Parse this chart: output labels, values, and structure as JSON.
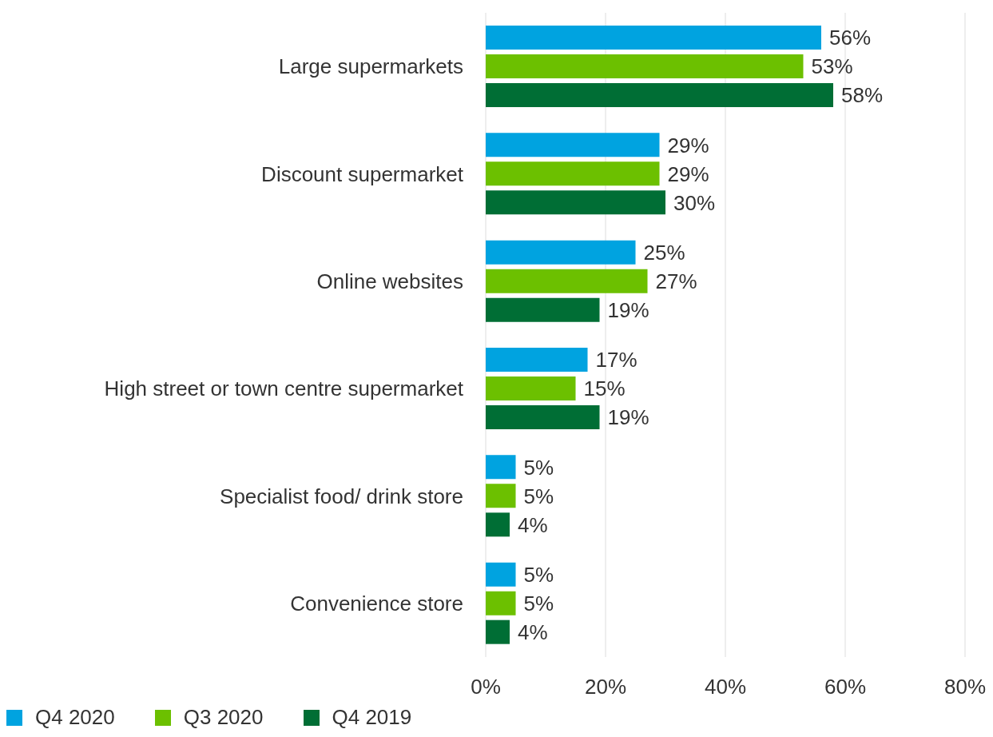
{
  "chart_data": {
    "type": "bar",
    "orientation": "horizontal",
    "categories": [
      "Large supermarkets",
      "Discount supermarket",
      "Online websites",
      "High street or town centre supermarket",
      "Specialist food/ drink store",
      "Convenience store"
    ],
    "series": [
      {
        "name": "Q4 2020",
        "color": "#00a3e0",
        "values": [
          56,
          29,
          25,
          17,
          5,
          5
        ],
        "value_labels": [
          "56%",
          "29%",
          "25%",
          "17%",
          "5%",
          "5%"
        ]
      },
      {
        "name": "Q3 2020",
        "color": "#6cc000",
        "values": [
          53,
          29,
          27,
          15,
          5,
          5
        ],
        "value_labels": [
          "53%",
          "29%",
          "27%",
          "15%",
          "5%",
          "5%"
        ]
      },
      {
        "name": "Q4 2019",
        "color": "#006e35",
        "values": [
          58,
          30,
          19,
          19,
          4,
          4
        ],
        "value_labels": [
          "58%",
          "30%",
          "19%",
          "19%",
          "4%",
          "4%"
        ]
      }
    ],
    "xlim": [
      0,
      80
    ],
    "xticks": [
      {
        "value": 0,
        "label": "0%"
      },
      {
        "value": 20,
        "label": "20%"
      },
      {
        "value": 40,
        "label": "40%"
      },
      {
        "value": 60,
        "label": "60%"
      },
      {
        "value": 80,
        "label": "80%"
      }
    ],
    "grid": "x",
    "legend": "bottom left"
  }
}
